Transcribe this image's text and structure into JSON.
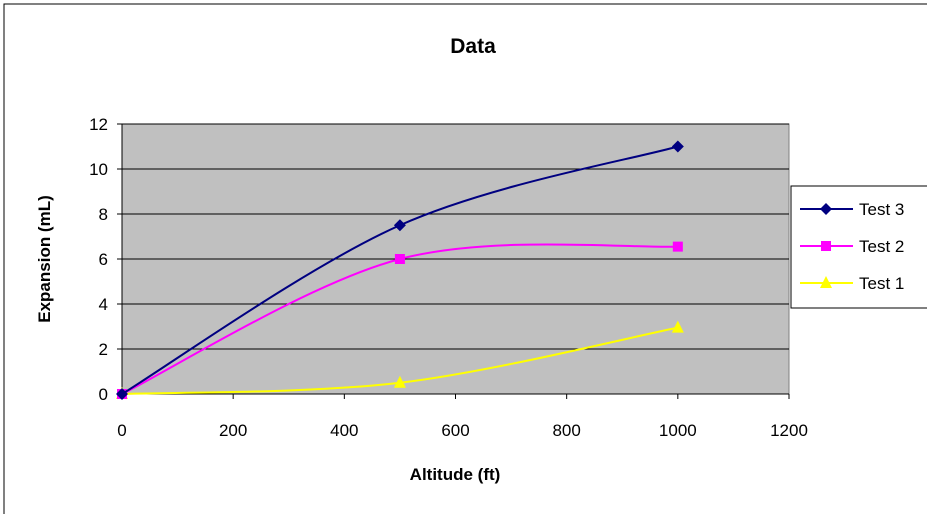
{
  "chart_data": {
    "type": "line",
    "title": "Data",
    "xlabel": "Altitude (ft)",
    "ylabel": "Expansion (mL)",
    "xlim": [
      0,
      1200
    ],
    "ylim": [
      0,
      12
    ],
    "x_ticks": [
      0,
      200,
      400,
      600,
      800,
      1000,
      1200
    ],
    "y_ticks": [
      0,
      2,
      4,
      6,
      8,
      10,
      12
    ],
    "grid": "horizontal",
    "plot_background": "#c0c0c0",
    "legend_position": "right",
    "x": [
      0,
      500,
      1000
    ],
    "series": [
      {
        "name": "Test 3",
        "values": [
          0,
          7.5,
          11
        ],
        "color": "#000080",
        "marker": "diamond"
      },
      {
        "name": "Test 2",
        "values": [
          0,
          6,
          6.55
        ],
        "color": "#ff00ff",
        "marker": "square"
      },
      {
        "name": "Test 1",
        "values": [
          0,
          0.5,
          2.95
        ],
        "color": "#ffff00",
        "marker": "triangle"
      }
    ]
  }
}
